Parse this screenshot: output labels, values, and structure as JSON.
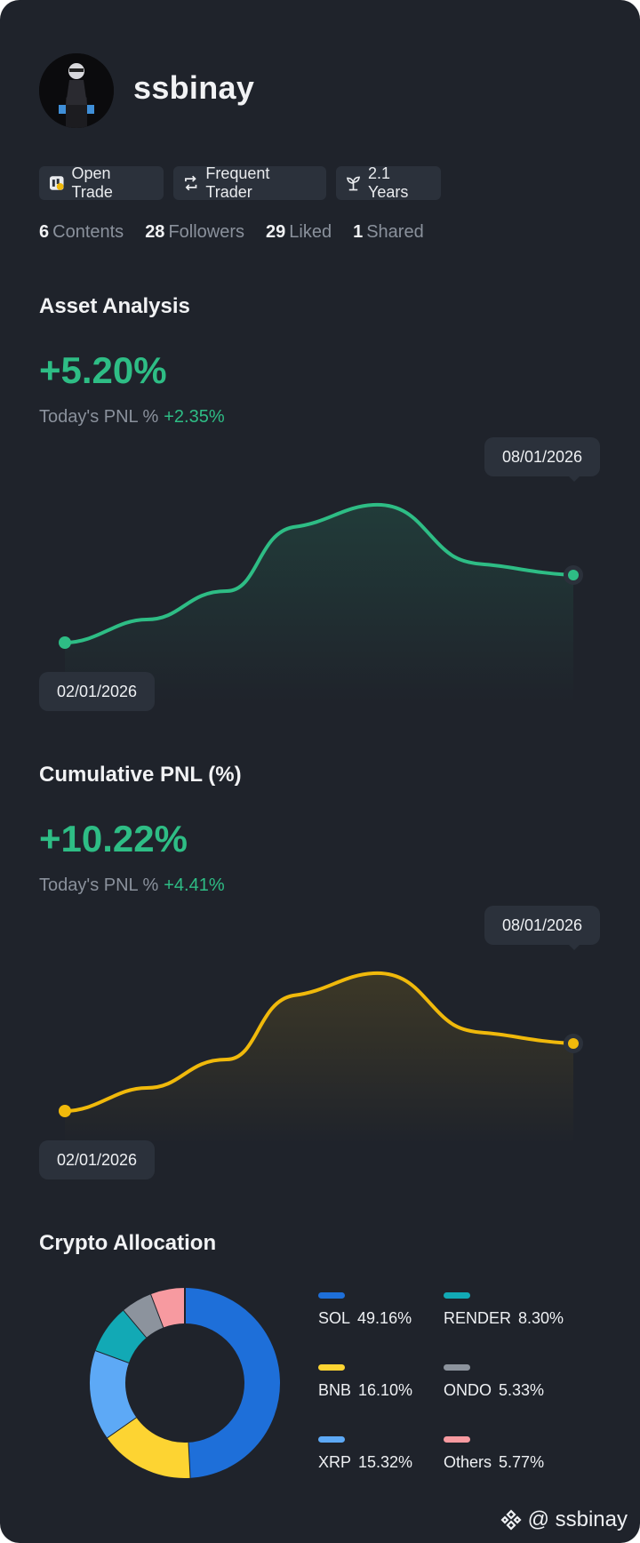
{
  "profile": {
    "username": "ssbinay",
    "tags": [
      {
        "icon": "open-trade-icon",
        "label": "Open Trade"
      },
      {
        "icon": "repeat-icon",
        "label": "Frequent Trader"
      },
      {
        "icon": "sprout-icon",
        "label": "2.1 Years"
      }
    ],
    "stats": [
      {
        "num": "6",
        "label": "Contents"
      },
      {
        "num": "28",
        "label": "Followers"
      },
      {
        "num": "29",
        "label": "Liked"
      },
      {
        "num": "1",
        "label": "Shared"
      }
    ]
  },
  "asset_analysis": {
    "title": "Asset Analysis",
    "value": "+5.20%",
    "today_label": "Today's PNL %",
    "today_value": "+2.35%",
    "start_date": "02/01/2026",
    "end_date": "08/01/2026"
  },
  "cumulative_pnl": {
    "title": "Cumulative PNL (%)",
    "value": "+10.22%",
    "today_label": "Today's PNL %",
    "today_value": "+4.41%",
    "start_date": "02/01/2026",
    "end_date": "08/01/2026"
  },
  "allocation": {
    "title": "Crypto Allocation",
    "items": [
      {
        "name": "SOL",
        "pct": "49.16%",
        "value": 49.16,
        "color": "#1e6fd9"
      },
      {
        "name": "BNB",
        "pct": "16.10%",
        "value": 16.1,
        "color": "#fdd432"
      },
      {
        "name": "XRP",
        "pct": "15.32%",
        "value": 15.32,
        "color": "#5da9f6"
      },
      {
        "name": "RENDER",
        "pct": "8.30%",
        "value": 8.3,
        "color": "#12a9b5"
      },
      {
        "name": "ONDO",
        "pct": "5.33%",
        "value": 5.33,
        "color": "#8c939d"
      },
      {
        "name": "Others",
        "pct": "5.77%",
        "value": 5.77,
        "color": "#f79aa0"
      }
    ]
  },
  "watermark": {
    "handle": "@ ssbinay"
  },
  "colors": {
    "green": "#2ebd85",
    "yellow": "#f0b90b",
    "card": "#1f232b"
  }
}
